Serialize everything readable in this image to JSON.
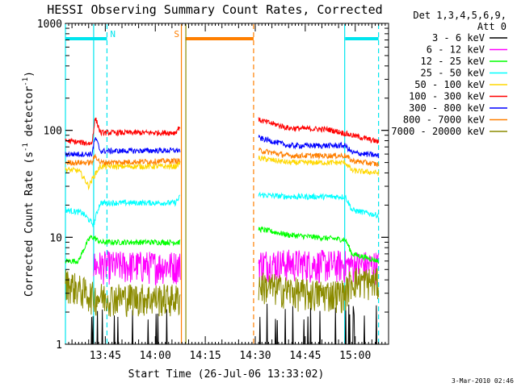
{
  "chart_data": {
    "type": "line",
    "title": "HESSI Observing Summary Count Rates, Corrected",
    "xlabel": "Start Time (26-Jul-06 13:33:02)",
    "ylabel_main": "Corrected Count Rate (s",
    "ylabel_sup1": "-1",
    "ylabel_mid": " detector",
    "ylabel_sup2": "-1",
    "ylabel_end": ")",
    "ylim": [
      1,
      1000
    ],
    "yscale": "log",
    "xlim": [
      "13:33:02",
      "15:10:00"
    ],
    "x_ticks": [
      "13:45",
      "14:00",
      "14:15",
      "14:30",
      "14:45",
      "15:00"
    ],
    "y_ticks": [
      "1",
      "10",
      "100",
      "1000"
    ],
    "legend_title_1": "Det 1,3,4,5,6,9,",
    "legend_title_2": "Att 0",
    "legend_position": "top-right",
    "timestamp": "3-Mar-2010 02:46",
    "flags": [
      {
        "label": "N",
        "color": "#00e5ee",
        "intervals": [
          [
            "13:33:02",
            "13:45:30"
          ],
          [
            "14:57:00",
            "15:07:00"
          ]
        ]
      },
      {
        "label": "S",
        "color": "#ff7f00",
        "intervals": [
          [
            "14:09:00",
            "14:29:30"
          ]
        ]
      }
    ],
    "night_boundaries": {
      "color": "#00e5ee",
      "solid": [
        "13:33:02",
        "13:41:30",
        "14:56:50"
      ],
      "dashed": [
        "13:45:30",
        "15:07:00"
      ]
    },
    "saa_boundaries": {
      "color": "#ff7f00",
      "solid": [
        "14:07:50"
      ],
      "dashed": [
        "14:29:30"
      ],
      "olive_solid": [
        "14:09:10"
      ]
    },
    "series": [
      {
        "name": "3 - 6 keV",
        "color": "#000000",
        "segments": [
          {
            "t": [
              "13:33:02",
              "14:07:30"
            ],
            "v": [
              1,
              1
            ]
          },
          {
            "t": [
              "14:31:00",
              "15:07:00"
            ],
            "v": [
              1,
              1
            ]
          }
        ]
      },
      {
        "name": "6 - 12 keV",
        "color": "#ff00ff",
        "segments": [
          {
            "t": [
              "13:41:30",
              "14:07:30"
            ],
            "v": [
              5.5,
              5.5
            ]
          },
          {
            "t": [
              "14:31:00",
              "15:07:00"
            ],
            "v": [
              5.8,
              5.5
            ]
          }
        ]
      },
      {
        "name": "12 - 25 keV",
        "color": "#00ff00",
        "segments": [
          {
            "t": [
              "13:33:02",
              "13:37:00",
              "13:40:30",
              "13:41:30",
              "13:43:30",
              "14:07:30"
            ],
            "v": [
              6,
              6,
              10,
              10,
              9,
              9
            ]
          },
          {
            "t": [
              "14:31:00",
              "14:40:00",
              "14:57:00",
              "14:59:00",
              "15:07:00"
            ],
            "v": [
              12,
              10.5,
              9.5,
              7,
              6
            ]
          }
        ]
      },
      {
        "name": "25 - 50 keV",
        "color": "#00ffff",
        "segments": [
          {
            "t": [
              "13:33:02",
              "13:38:00",
              "13:41:30",
              "13:43:30",
              "14:06:00",
              "14:07:30"
            ],
            "v": [
              18,
              17,
              13,
              21,
              21,
              24
            ]
          },
          {
            "t": [
              "14:31:00",
              "14:40:00",
              "14:57:00",
              "14:59:00",
              "15:07:00"
            ],
            "v": [
              25,
              24,
              24,
              18,
              16
            ]
          }
        ]
      },
      {
        "name": "50 - 100 keV",
        "color": "#ffd700",
        "segments": [
          {
            "t": [
              "13:33:02",
              "13:37:00",
              "13:40:00",
              "13:43:30",
              "14:06:00",
              "14:07:30"
            ],
            "v": [
              43,
              42,
              30,
              46,
              46,
              50
            ]
          },
          {
            "t": [
              "14:31:00",
              "14:40:00",
              "14:57:00",
              "14:59:00",
              "15:07:00"
            ],
            "v": [
              55,
              50,
              50,
              42,
              40
            ]
          }
        ]
      },
      {
        "name": "100 - 300 keV",
        "color": "#ff0000",
        "segments": [
          {
            "t": [
              "13:33:02",
              "13:41:00",
              "13:42:00",
              "13:43:30",
              "14:06:00",
              "14:07:30"
            ],
            "v": [
              80,
              75,
              130,
              95,
              95,
              110
            ]
          },
          {
            "t": [
              "14:31:00",
              "14:40:00",
              "14:52:00",
              "14:59:00",
              "15:07:00"
            ],
            "v": [
              125,
              105,
              102,
              90,
              78
            ]
          }
        ]
      },
      {
        "name": "300 - 800 keV",
        "color": "#0000ff",
        "segments": [
          {
            "t": [
              "13:33:02",
              "13:41:00",
              "13:42:00",
              "13:43:30",
              "14:07:30"
            ],
            "v": [
              60,
              60,
              85,
              64,
              65
            ]
          },
          {
            "t": [
              "14:31:00",
              "14:40:00",
              "14:57:00",
              "14:59:00",
              "15:07:00"
            ],
            "v": [
              85,
              72,
              72,
              62,
              58
            ]
          }
        ]
      },
      {
        "name": "800 - 7000 keV",
        "color": "#ff7f00",
        "segments": [
          {
            "t": [
              "13:33:02",
              "13:41:00",
              "13:42:00",
              "13:43:30",
              "14:07:30"
            ],
            "v": [
              50,
              50,
              58,
              50,
              52
            ]
          },
          {
            "t": [
              "14:31:00",
              "14:40:00",
              "14:57:00",
              "14:59:00",
              "15:07:00"
            ],
            "v": [
              65,
              58,
              58,
              52,
              48
            ]
          }
        ]
      },
      {
        "name": "7000 - 20000 keV",
        "color": "#8b8b00",
        "segments": [
          {
            "t": [
              "13:33:02",
              "13:38:00",
              "13:41:30",
              "14:07:30"
            ],
            "v": [
              3.8,
              3.2,
              2.8,
              2.7
            ]
          },
          {
            "t": [
              "14:31:00",
              "14:45:00",
              "14:57:00",
              "14:59:00",
              "15:07:00"
            ],
            "v": [
              3.6,
              3.0,
              3.0,
              4.0,
              3.8
            ]
          }
        ]
      }
    ]
  }
}
